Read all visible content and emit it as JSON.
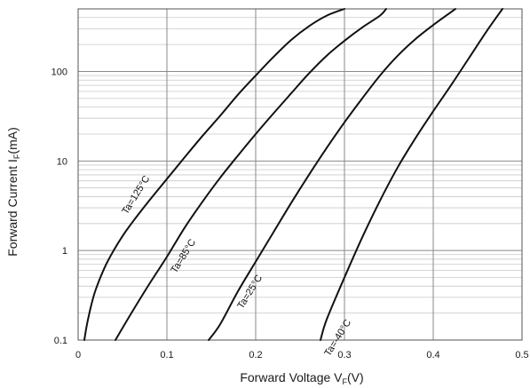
{
  "chart_data": {
    "type": "line",
    "x_scale": "linear",
    "y_scale": "log",
    "xlim": [
      0,
      0.5
    ],
    "ylim": [
      0.1,
      500
    ],
    "x_ticks": [
      "0",
      "0.1",
      "0.2",
      "0.3",
      "0.4",
      "0.5"
    ],
    "y_ticks": [
      "0.1",
      "1",
      "10",
      "100"
    ],
    "xlabel": {
      "main": "Forward Voltage  V",
      "sub": "F",
      "tail": "(V)"
    },
    "ylabel": {
      "main": "Forward Current  I",
      "sub": "F",
      "tail": "(mA)"
    },
    "grid": true,
    "series": [
      {
        "name": "Ta=125°C",
        "x": [
          0.007,
          0.01,
          0.015,
          0.02,
          0.03,
          0.04,
          0.05,
          0.06,
          0.08,
          0.1,
          0.12,
          0.14,
          0.16,
          0.18,
          0.2,
          0.22,
          0.24,
          0.26,
          0.28,
          0.3
        ],
        "y": [
          0.1,
          0.15,
          0.25,
          0.37,
          0.65,
          1.0,
          1.45,
          2.0,
          3.6,
          6.3,
          11,
          19,
          32,
          55,
          90,
          145,
          225,
          320,
          420,
          500
        ]
      },
      {
        "name": "Ta=85°C",
        "x": [
          0.042,
          0.06,
          0.08,
          0.1,
          0.12,
          0.14,
          0.16,
          0.18,
          0.2,
          0.22,
          0.24,
          0.26,
          0.28,
          0.3,
          0.32,
          0.34,
          0.347
        ],
        "y": [
          0.1,
          0.2,
          0.42,
          0.85,
          1.8,
          3.5,
          6.5,
          11.5,
          20,
          34,
          57,
          95,
          150,
          220,
          310,
          420,
          500
        ]
      },
      {
        "name": "Ta=25°C",
        "x": [
          0.147,
          0.16,
          0.18,
          0.2,
          0.22,
          0.24,
          0.26,
          0.28,
          0.3,
          0.32,
          0.34,
          0.36,
          0.38,
          0.4,
          0.42,
          0.425
        ],
        "y": [
          0.1,
          0.15,
          0.35,
          0.75,
          1.6,
          3.4,
          7,
          14,
          27,
          50,
          90,
          150,
          230,
          330,
          460,
          500
        ]
      },
      {
        "name": "Ta=-40°C",
        "x": [
          0.273,
          0.28,
          0.3,
          0.32,
          0.34,
          0.36,
          0.38,
          0.4,
          0.42,
          0.44,
          0.46,
          0.478
        ],
        "y": [
          0.1,
          0.17,
          0.5,
          1.4,
          3.6,
          8.5,
          18,
          36,
          70,
          140,
          280,
          500
        ]
      }
    ],
    "curve_labels": [
      "Ta=125°C",
      "Ta=85°C",
      "Ta=25°C",
      "Ta=-40°C"
    ]
  }
}
